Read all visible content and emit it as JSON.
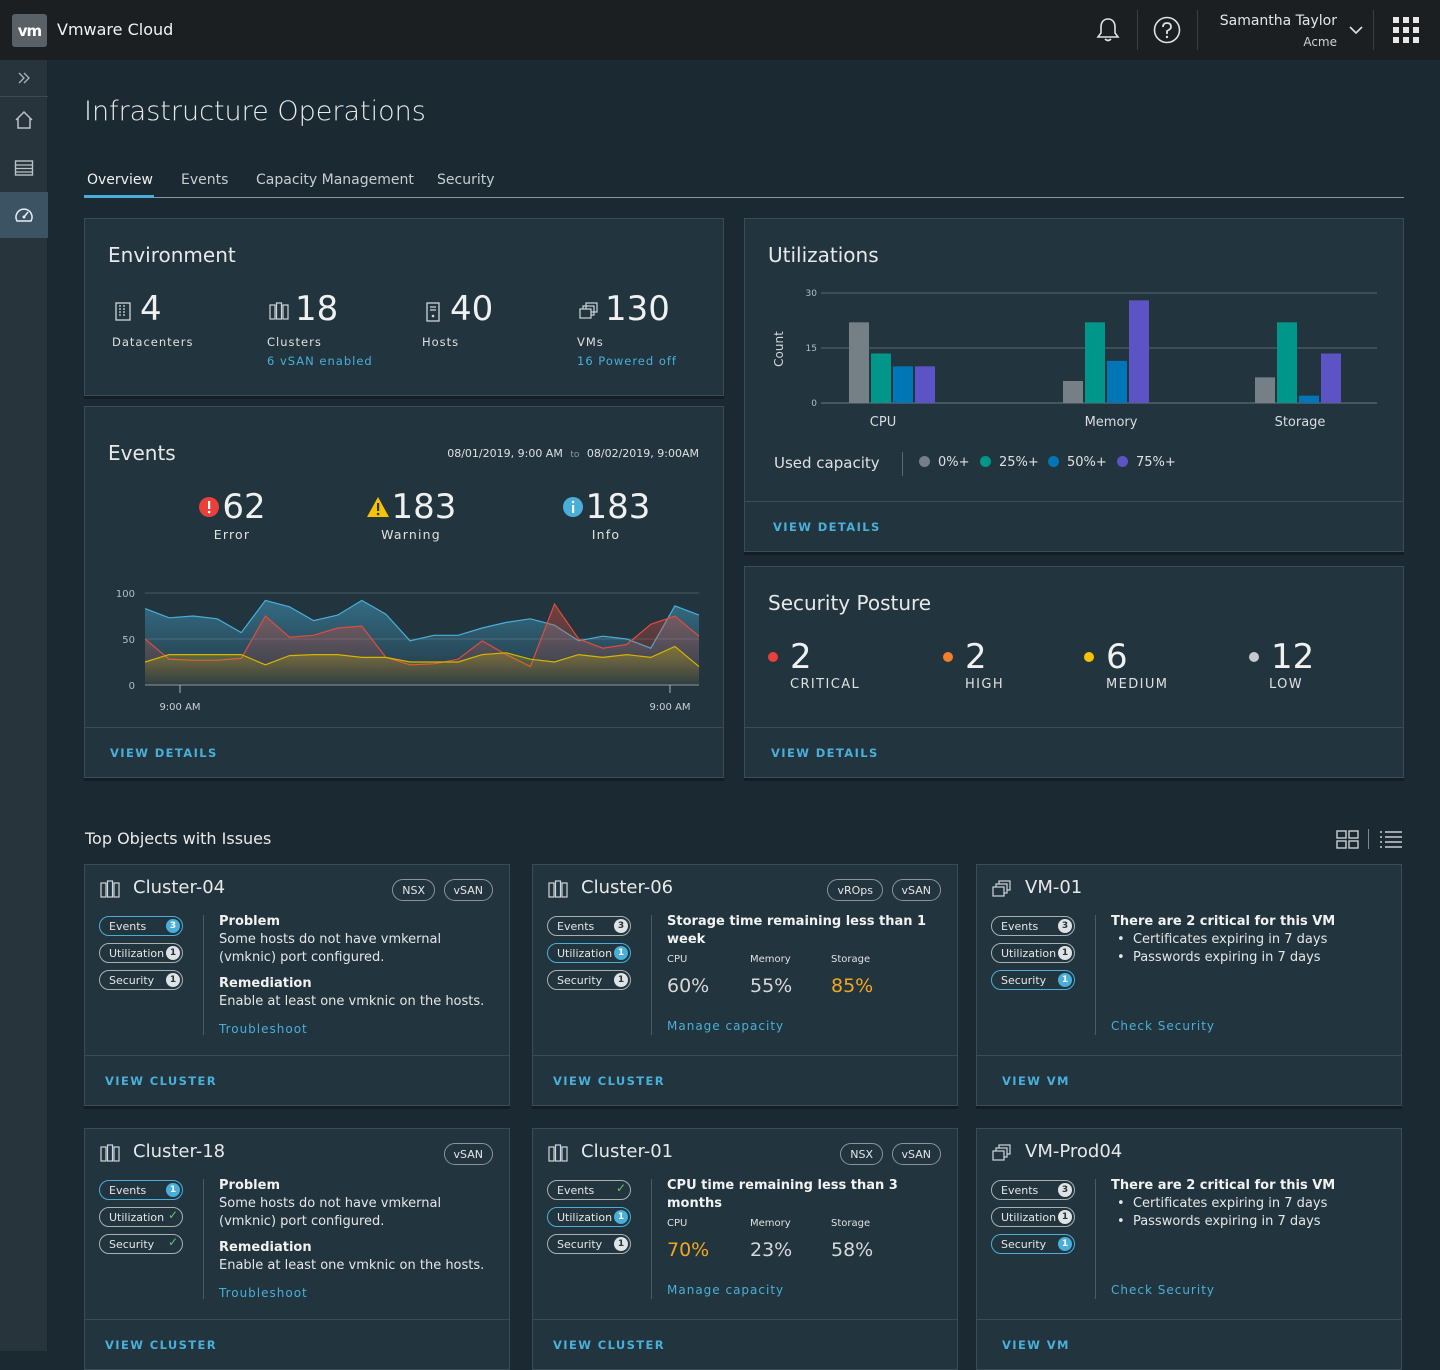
{
  "header": {
    "logo": "vm",
    "app_title": "Vmware Cloud",
    "user_name": "Samantha Taylor",
    "user_org": "Acme",
    "icons": [
      "bell-icon",
      "help-icon",
      "chevron-down-icon",
      "app-grid-icon"
    ]
  },
  "sidenav": {
    "items": [
      {
        "name": "expand-icon"
      },
      {
        "name": "home-icon"
      },
      {
        "name": "list-icon"
      },
      {
        "name": "dashboard-icon",
        "active": true
      }
    ]
  },
  "page": {
    "title": "Infrastructure Operations",
    "tabs": [
      "Overview",
      "Events",
      "Capacity Management",
      "Security"
    ],
    "active_tab": "Overview"
  },
  "environment": {
    "title": "Environment",
    "stats": [
      {
        "value": "4",
        "label": "Datacenters",
        "sub": ""
      },
      {
        "value": "18",
        "label": "Clusters",
        "sub": "6 vSAN enabled"
      },
      {
        "value": "40",
        "label": "Hosts",
        "sub": ""
      },
      {
        "value": "130",
        "label": "VMs",
        "sub": "16 Powered off"
      }
    ]
  },
  "events": {
    "title": "Events",
    "range_start": "08/01/2019, 9:00 AM",
    "range_to": "to",
    "range_end": "08/02/2019, 9:00AM",
    "stats": [
      {
        "value": "62",
        "label": "Error"
      },
      {
        "value": "183",
        "label": "Warning"
      },
      {
        "value": "183",
        "label": "Info"
      }
    ],
    "footer": "VIEW DETAILS"
  },
  "utilizations": {
    "title": "Utilizations",
    "legend_title": "Used capacity",
    "footer": "VIEW DETAILS"
  },
  "security_posture": {
    "title": "Security Posture",
    "stats": [
      {
        "value": "2",
        "label": "CRITICAL",
        "color": "#e9403a"
      },
      {
        "value": "2",
        "label": "HIGH",
        "color": "#f27f29"
      },
      {
        "value": "6",
        "label": "MEDIUM",
        "color": "#f8c200"
      },
      {
        "value": "12",
        "label": "LOW",
        "color": "#c4cacd"
      }
    ],
    "footer": "VIEW DETAILS"
  },
  "top_objects": {
    "title": "Top Objects with Issues",
    "cards": [
      {
        "name": "Cluster-04",
        "type": "cluster",
        "tags": [
          "NSX",
          "vSAN"
        ],
        "pills": [
          {
            "label": "Events",
            "badge": "3",
            "hl": true
          },
          {
            "label": "Utilization",
            "badge": "1",
            "hl": false
          },
          {
            "label": "Security",
            "badge": "1",
            "hl": false
          }
        ],
        "problem_title": "Problem",
        "problem_text": "Some hosts do not have vmkernal (vmknic) port configured.",
        "remediation_title": "Remediation",
        "remediation_text": "Enable at least one vmknic on the hosts.",
        "action": "Troubleshoot",
        "footer": "VIEW CLUSTER"
      },
      {
        "name": "Cluster-06",
        "type": "cluster",
        "tags": [
          "vROps",
          "vSAN"
        ],
        "pills": [
          {
            "label": "Events",
            "badge": "3",
            "hl": false
          },
          {
            "label": "Utilization",
            "badge": "1",
            "hl": true
          },
          {
            "label": "Security",
            "badge": "1",
            "hl": false
          }
        ],
        "headline": "Storage time remaining less than 1 week",
        "metrics": [
          {
            "label": "CPU",
            "value": "60%",
            "warn": false
          },
          {
            "label": "Memory",
            "value": "55%",
            "warn": false
          },
          {
            "label": "Storage",
            "value": "85%",
            "warn": true
          }
        ],
        "action": "Manage capacity",
        "footer": "VIEW CLUSTER"
      },
      {
        "name": "VM-01",
        "type": "vm",
        "tags": [],
        "pills": [
          {
            "label": "Events",
            "badge": "3",
            "hl": false
          },
          {
            "label": "Utilization",
            "badge": "1",
            "hl": false
          },
          {
            "label": "Security",
            "badge": "1",
            "hl": true
          }
        ],
        "headline": "There are 2 critical for this VM",
        "bullets": [
          "Certificates expiring in 7 days",
          "Passwords expiring in 7 days"
        ],
        "action": "Check Security",
        "footer": "VIEW VM"
      },
      {
        "name": "Cluster-18",
        "type": "cluster",
        "tags": [
          "vSAN"
        ],
        "pills": [
          {
            "label": "Events",
            "badge": "1",
            "hl": true
          },
          {
            "label": "Utilization",
            "badge": "",
            "hl": false
          },
          {
            "label": "Security",
            "badge": "",
            "hl": false
          }
        ],
        "problem_title": "Problem",
        "problem_text": "Some hosts do not have vmkernal (vmknic) port configured.",
        "remediation_title": "Remediation",
        "remediation_text": "Enable at least one vmknic on the hosts.",
        "action": "Troubleshoot",
        "footer": "VIEW CLUSTER"
      },
      {
        "name": "Cluster-01",
        "type": "cluster",
        "tags": [
          "NSX",
          "vSAN"
        ],
        "pills": [
          {
            "label": "Events",
            "badge": "",
            "hl": false
          },
          {
            "label": "Utilization",
            "badge": "1",
            "hl": true
          },
          {
            "label": "Security",
            "badge": "1",
            "hl": false
          }
        ],
        "headline": "CPU time remaining less than 3 months",
        "metrics": [
          {
            "label": "CPU",
            "value": "70%",
            "warn": true
          },
          {
            "label": "Memory",
            "value": "23%",
            "warn": false
          },
          {
            "label": "Storage",
            "value": "58%",
            "warn": false
          }
        ],
        "action": "Manage capacity",
        "footer": "VIEW CLUSTER"
      },
      {
        "name": "VM-Prod04",
        "type": "vm",
        "tags": [],
        "pills": [
          {
            "label": "Events",
            "badge": "3",
            "hl": false
          },
          {
            "label": "Utilization",
            "badge": "1",
            "hl": false
          },
          {
            "label": "Security",
            "badge": "1",
            "hl": true
          }
        ],
        "headline": "There are 2 critical for this VM",
        "bullets": [
          "Certificates expiring in 7 days",
          "Passwords expiring in 7 days"
        ],
        "action": "Check Security",
        "footer": "VIEW VM"
      }
    ]
  },
  "chart_data": [
    {
      "type": "bar",
      "categories": [
        "CPU",
        "Memory",
        "Storage"
      ],
      "ylabel": "Count",
      "ylim": [
        0,
        30
      ],
      "yticks": [
        0,
        15,
        30
      ],
      "legend_title": "Used capacity",
      "series": [
        {
          "name": "0%+",
          "color": "#747f86",
          "values": [
            22,
            6,
            7
          ]
        },
        {
          "name": "25%+",
          "color": "#00968a",
          "values": [
            13.5,
            22,
            22
          ]
        },
        {
          "name": "50%+",
          "color": "#0076b6",
          "values": [
            10,
            11.5,
            2
          ]
        },
        {
          "name": "75%+",
          "color": "#5c54c4",
          "values": [
            10,
            28,
            13.5
          ]
        }
      ]
    },
    {
      "type": "area",
      "ylim": [
        0,
        100
      ],
      "yticks": [
        0,
        50,
        100
      ],
      "x_labels": [
        "9:00 AM",
        "9:00 AM"
      ],
      "series": [
        {
          "color": "#49afd9",
          "values": [
            83,
            73,
            75,
            72,
            57,
            92,
            85,
            70,
            76,
            92,
            77,
            48,
            54,
            54,
            62,
            68,
            72,
            65,
            48,
            53,
            50,
            40,
            86,
            76
          ]
        },
        {
          "color": "#e04c3d",
          "values": [
            50,
            28,
            27,
            27,
            29,
            75,
            52,
            54,
            62,
            64,
            30,
            22,
            23,
            28,
            48,
            33,
            20,
            88,
            50,
            40,
            44,
            66,
            75,
            53
          ]
        },
        {
          "color": "#d6b400",
          "values": [
            25,
            33,
            33,
            33,
            33,
            22,
            32,
            33,
            33,
            30,
            30,
            25,
            25,
            25,
            33,
            35,
            28,
            25,
            33,
            30,
            33,
            30,
            42,
            20
          ]
        }
      ]
    }
  ]
}
